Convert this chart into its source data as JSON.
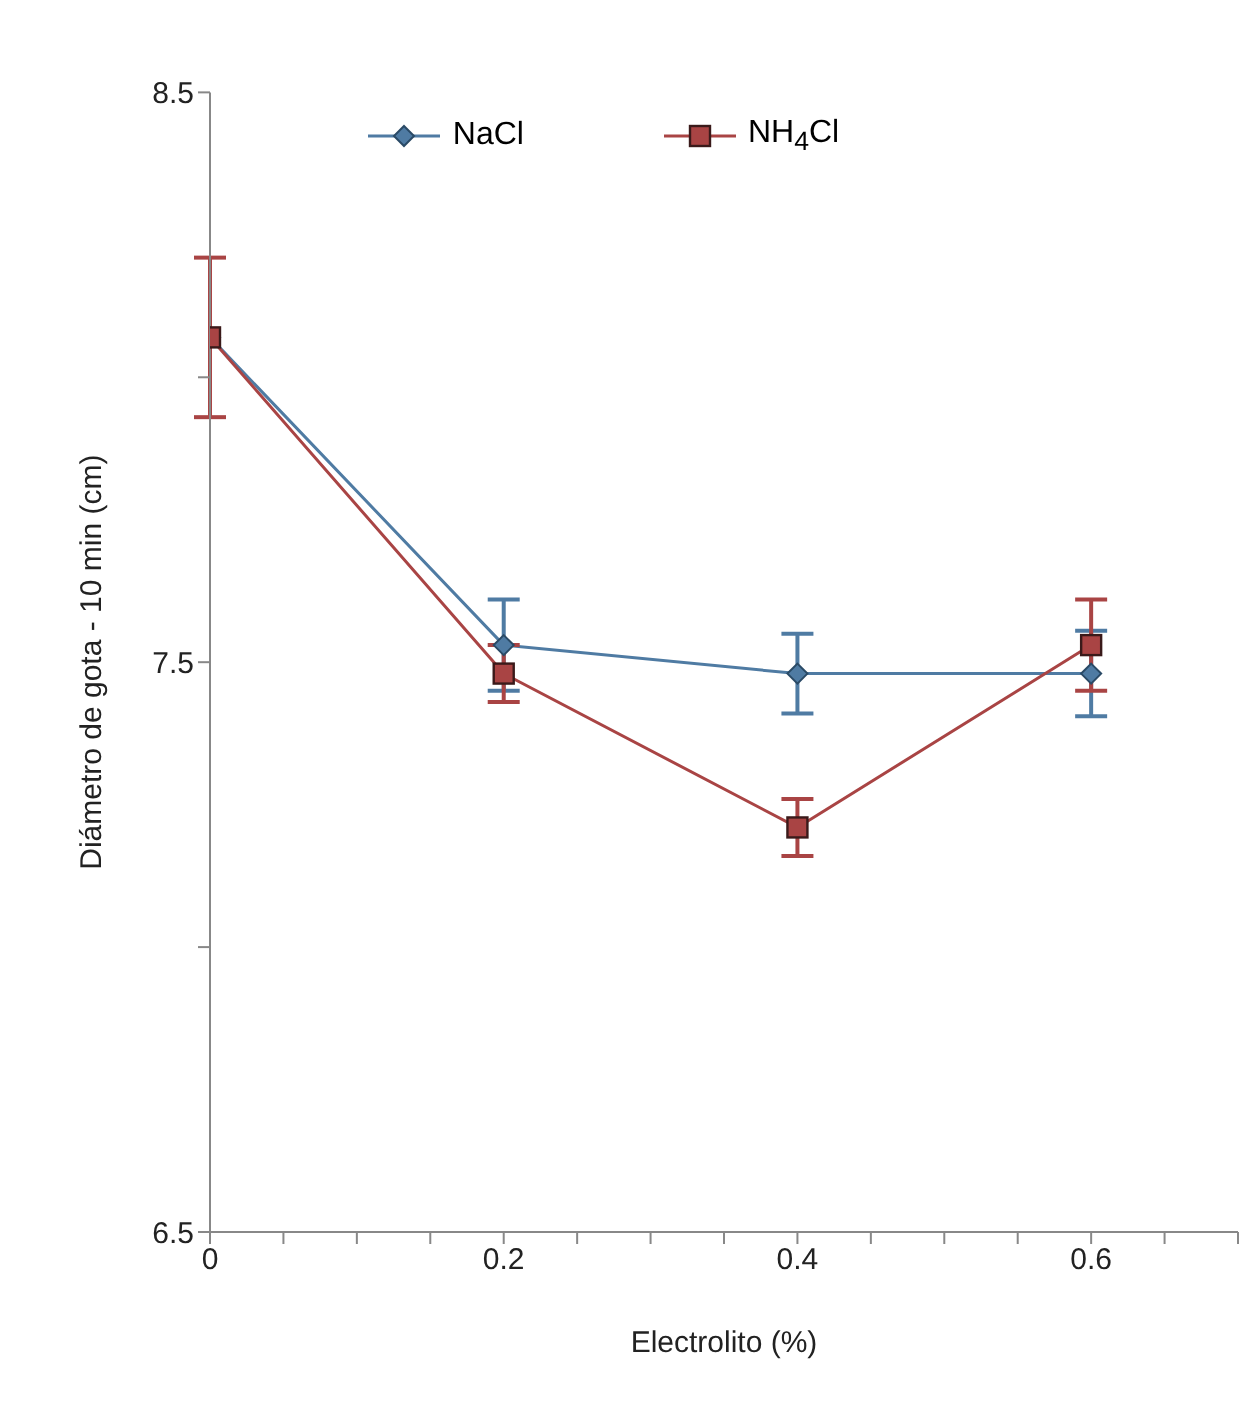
{
  "chart_data": {
    "type": "line",
    "xlabel": "Electrolito (%)",
    "ylabel": "Diámetro de gota - 10 min (cm)",
    "x": [
      0,
      0.2,
      0.4,
      0.6
    ],
    "series": [
      {
        "name": "NaCl",
        "color": "#4f7ba3",
        "marker": "diamond",
        "values": [
          8.07,
          7.53,
          7.48,
          7.48
        ],
        "errors": [
          null,
          0.08,
          0.07,
          0.075
        ]
      },
      {
        "name": "NH$_{4}$Cl",
        "color": "#a94444",
        "marker": "square",
        "values": [
          8.07,
          7.48,
          7.21,
          7.53
        ],
        "errors": [
          0.14,
          0.05,
          0.05,
          0.08
        ]
      }
    ],
    "xlim": [
      0,
      0.7
    ],
    "xticks": [
      0,
      {
        "value": 0.05,
        "label": null
      },
      {
        "value": 0.1,
        "label": null
      },
      {
        "value": 0.15,
        "label": null
      },
      0.2,
      {
        "value": 0.25,
        "label": null
      },
      {
        "value": 0.3,
        "label": null
      },
      {
        "value": 0.35,
        "label": null
      },
      0.4,
      {
        "value": 0.45,
        "label": null
      },
      {
        "value": 0.5,
        "label": null
      },
      {
        "value": 0.55,
        "label": null
      },
      0.6,
      {
        "value": 0.65,
        "label": null
      },
      {
        "value": 0.7,
        "label": null
      }
    ],
    "ylim": [
      6.5,
      8.5
    ],
    "yticks": [
      6.5,
      {
        "value": 7,
        "label": null
      },
      7.5,
      {
        "value": 8,
        "label": null
      },
      8.5
    ],
    "grid": false,
    "legend": "top",
    "line_style": "solid"
  }
}
